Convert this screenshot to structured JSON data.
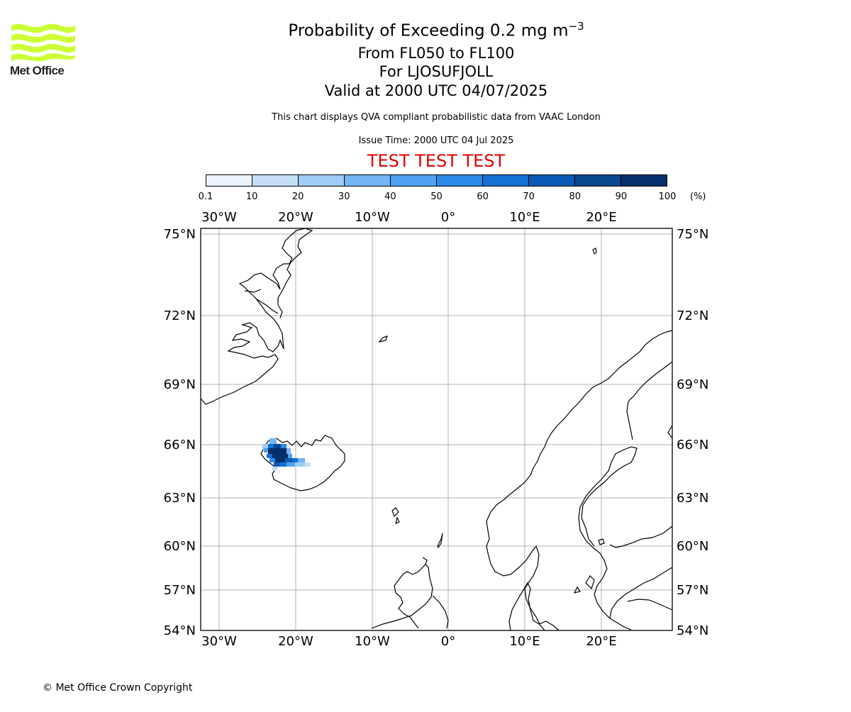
{
  "logo": {
    "text": "Met Office",
    "color": "#ccff33"
  },
  "title": {
    "line1_main": "Probability of Exceeding 0.2 mg m",
    "line1_sup": "−3",
    "line2": "From FL050 to FL100",
    "line3": "For LJOSUFJOLL",
    "line4": "Valid at 2000 UTC 04/07/2025",
    "line5": "This chart displays QVA compliant probabilistic data from VAAC London",
    "line6": "Issue Time: 2000 UTC 04 Jul 2025",
    "test_banner": "TEST TEST TEST",
    "test_color": "#e00000"
  },
  "colorbar": {
    "ticks": [
      "0.1",
      "10",
      "20",
      "30",
      "40",
      "50",
      "60",
      "70",
      "80",
      "90",
      "100"
    ],
    "unit": "(%)",
    "colors": [
      "#eaf3fd",
      "#c6dff8",
      "#9fcbf5",
      "#74b5f3",
      "#4ea2f1",
      "#2b8ae8",
      "#1470d3",
      "#0a5bb5",
      "#08488f",
      "#06306b"
    ]
  },
  "map": {
    "lon_labels": [
      "30°W",
      "20°W",
      "10°W",
      "0°",
      "10°E",
      "20°E"
    ],
    "lat_labels": [
      "75°N",
      "72°N",
      "69°N",
      "66°N",
      "63°N",
      "60°N",
      "57°N",
      "54°N"
    ]
  },
  "footer": {
    "copyright": "© Met Office Crown Copyright"
  }
}
